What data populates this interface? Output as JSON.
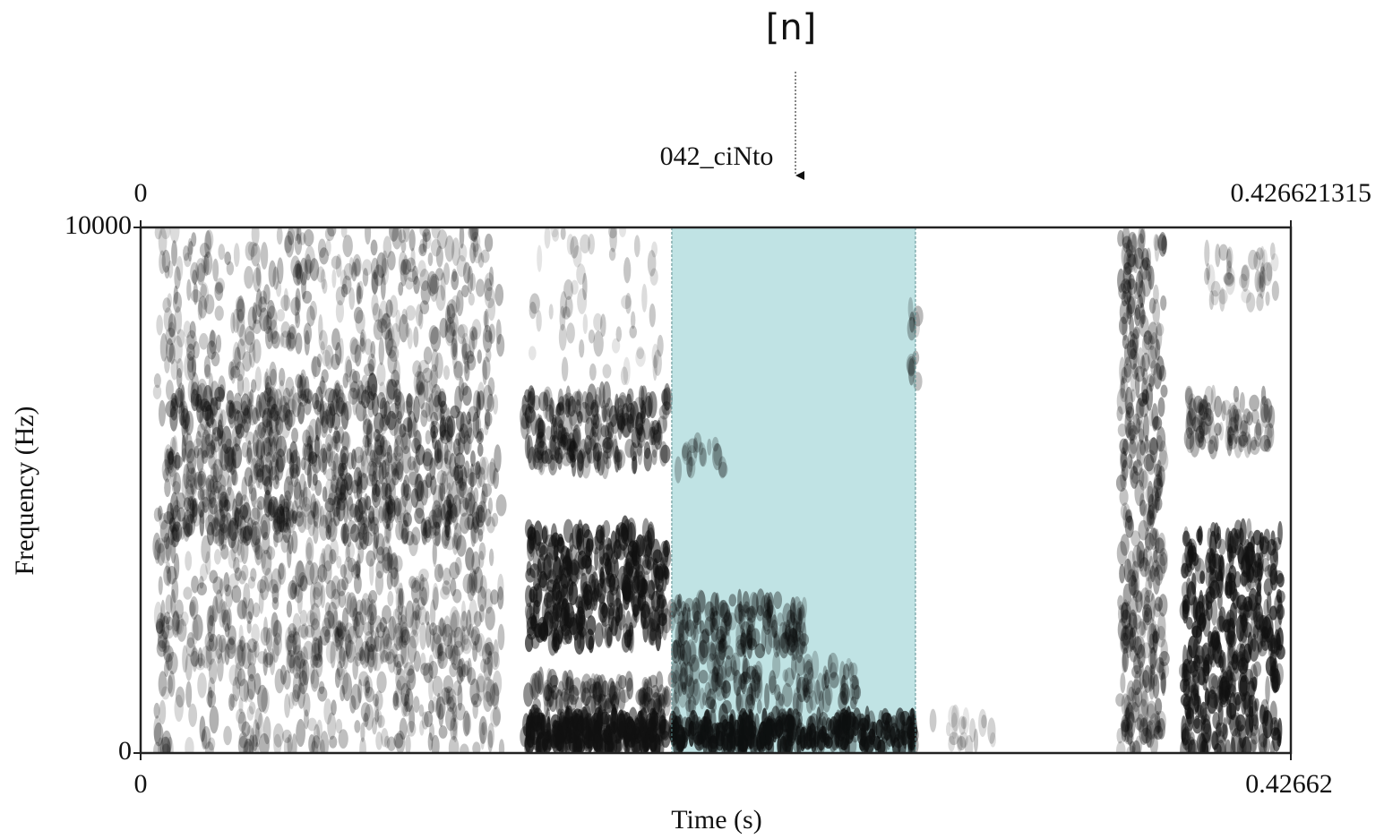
{
  "chart_data": {
    "type": "spectrogram",
    "annotation": "[n]",
    "title": "042_ciNto",
    "xlabel": "Time (s)",
    "ylabel": "Frequency (Hz)",
    "xlim": [
      0,
      0.426621315
    ],
    "xticks": [
      0,
      0.42662
    ],
    "top_ticks": [
      0,
      0.426621315
    ],
    "ylim": [
      0,
      10000
    ],
    "yticks": [
      0,
      10000
    ],
    "highlight": {
      "start": 0.197,
      "end": 0.2874,
      "color": "#c0e3e4"
    }
  }
}
